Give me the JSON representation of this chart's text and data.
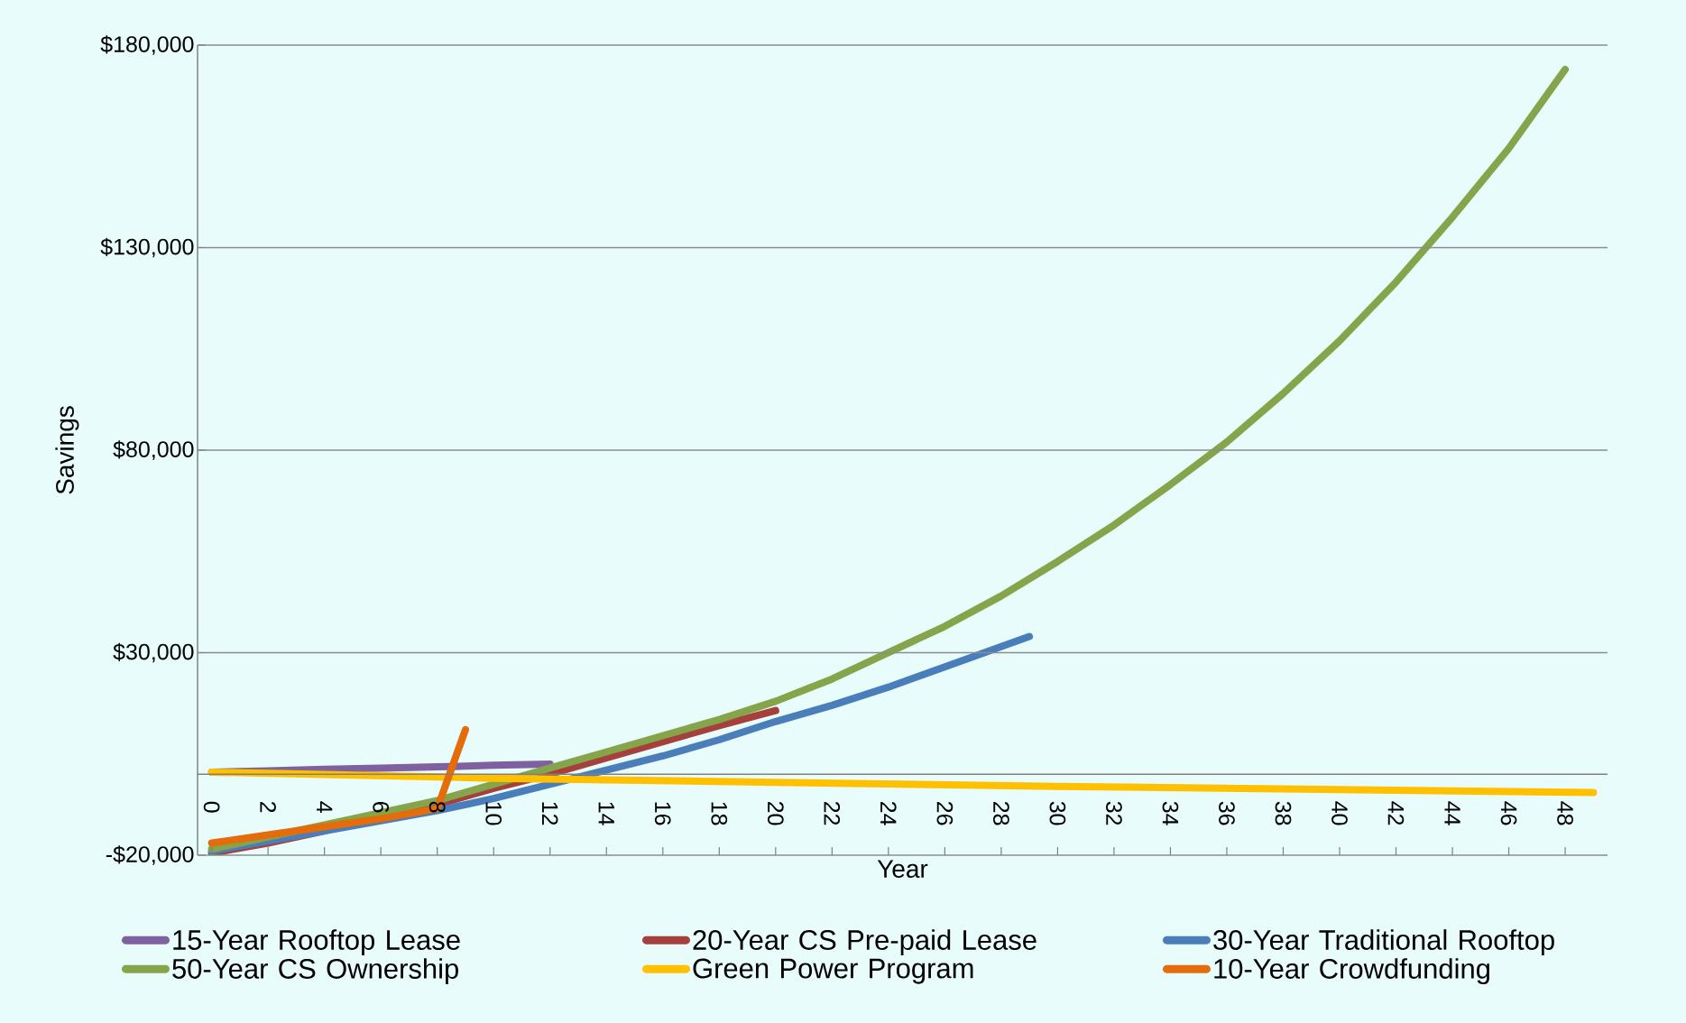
{
  "chart_data": {
    "type": "line",
    "xlabel": "Year",
    "ylabel": "Savings",
    "xlim": [
      -0.5,
      49.5
    ],
    "xticks": [
      0,
      2,
      4,
      6,
      8,
      10,
      12,
      14,
      16,
      18,
      20,
      22,
      24,
      26,
      28,
      30,
      32,
      34,
      36,
      38,
      40,
      42,
      44,
      46,
      48
    ],
    "ylim": [
      -20000,
      180000
    ],
    "yticks": [
      {
        "value": -20000,
        "label": "-$20,000"
      },
      {
        "value": 30000,
        "label": "$30,000"
      },
      {
        "value": 80000,
        "label": "$80,000"
      },
      {
        "value": 130000,
        "label": "$130,000"
      },
      {
        "value": 180000,
        "label": "$180,000"
      }
    ],
    "grid": "y",
    "legend": "bottom",
    "marker": "none",
    "line_style": "solid",
    "series": [
      {
        "name": "15-Year Rooftop Lease",
        "color": "#7f60a0",
        "x": [
          0,
          2,
          4,
          6,
          8,
          10,
          12
        ],
        "values": [
          500,
          800,
          1200,
          1500,
          1800,
          2200,
          2500
        ]
      },
      {
        "name": "20-Year CS Pre-paid Lease",
        "color": "#a5403c",
        "x": [
          0,
          2,
          4,
          6,
          8,
          10,
          12,
          14,
          16,
          18,
          20
        ],
        "values": [
          -19500,
          -17000,
          -14000,
          -10500,
          -7500,
          -3500,
          0,
          4000,
          8000,
          12000,
          15700
        ]
      },
      {
        "name": "30-Year Traditional Rooftop",
        "color": "#4a7ebb",
        "x": [
          0,
          2,
          4,
          6,
          8,
          10,
          12,
          14,
          16,
          18,
          20,
          22,
          24,
          26,
          28,
          29
        ],
        "values": [
          -19000,
          -16500,
          -14000,
          -11500,
          -9000,
          -6000,
          -2500,
          1000,
          4500,
          8500,
          13000,
          17000,
          21500,
          26500,
          31500,
          34000
        ]
      },
      {
        "name": "50-Year CS Ownership",
        "color": "#86a44a",
        "x": [
          0,
          2,
          4,
          6,
          8,
          10,
          12,
          14,
          16,
          18,
          20,
          22,
          24,
          26,
          28,
          30,
          32,
          34,
          36,
          38,
          40,
          42,
          44,
          46,
          48
        ],
        "values": [
          -18500,
          -15500,
          -12500,
          -9500,
          -6500,
          -2500,
          1500,
          5500,
          9500,
          13500,
          18000,
          23500,
          30000,
          36500,
          44000,
          52500,
          61500,
          71500,
          82000,
          94000,
          107000,
          121500,
          137500,
          154500,
          174000
        ]
      },
      {
        "name": "Green Power Program",
        "color": "#ffc000",
        "x": [
          0,
          10,
          20,
          30,
          40,
          49
        ],
        "values": [
          500,
          -1000,
          -2000,
          -3000,
          -3800,
          -4500
        ]
      },
      {
        "name": "10-Year Crowdfunding",
        "color": "#e46c0a",
        "x": [
          0,
          2,
          4,
          6,
          8,
          9
        ],
        "values": [
          -17000,
          -15000,
          -13000,
          -11000,
          -8500,
          11000
        ]
      }
    ]
  }
}
